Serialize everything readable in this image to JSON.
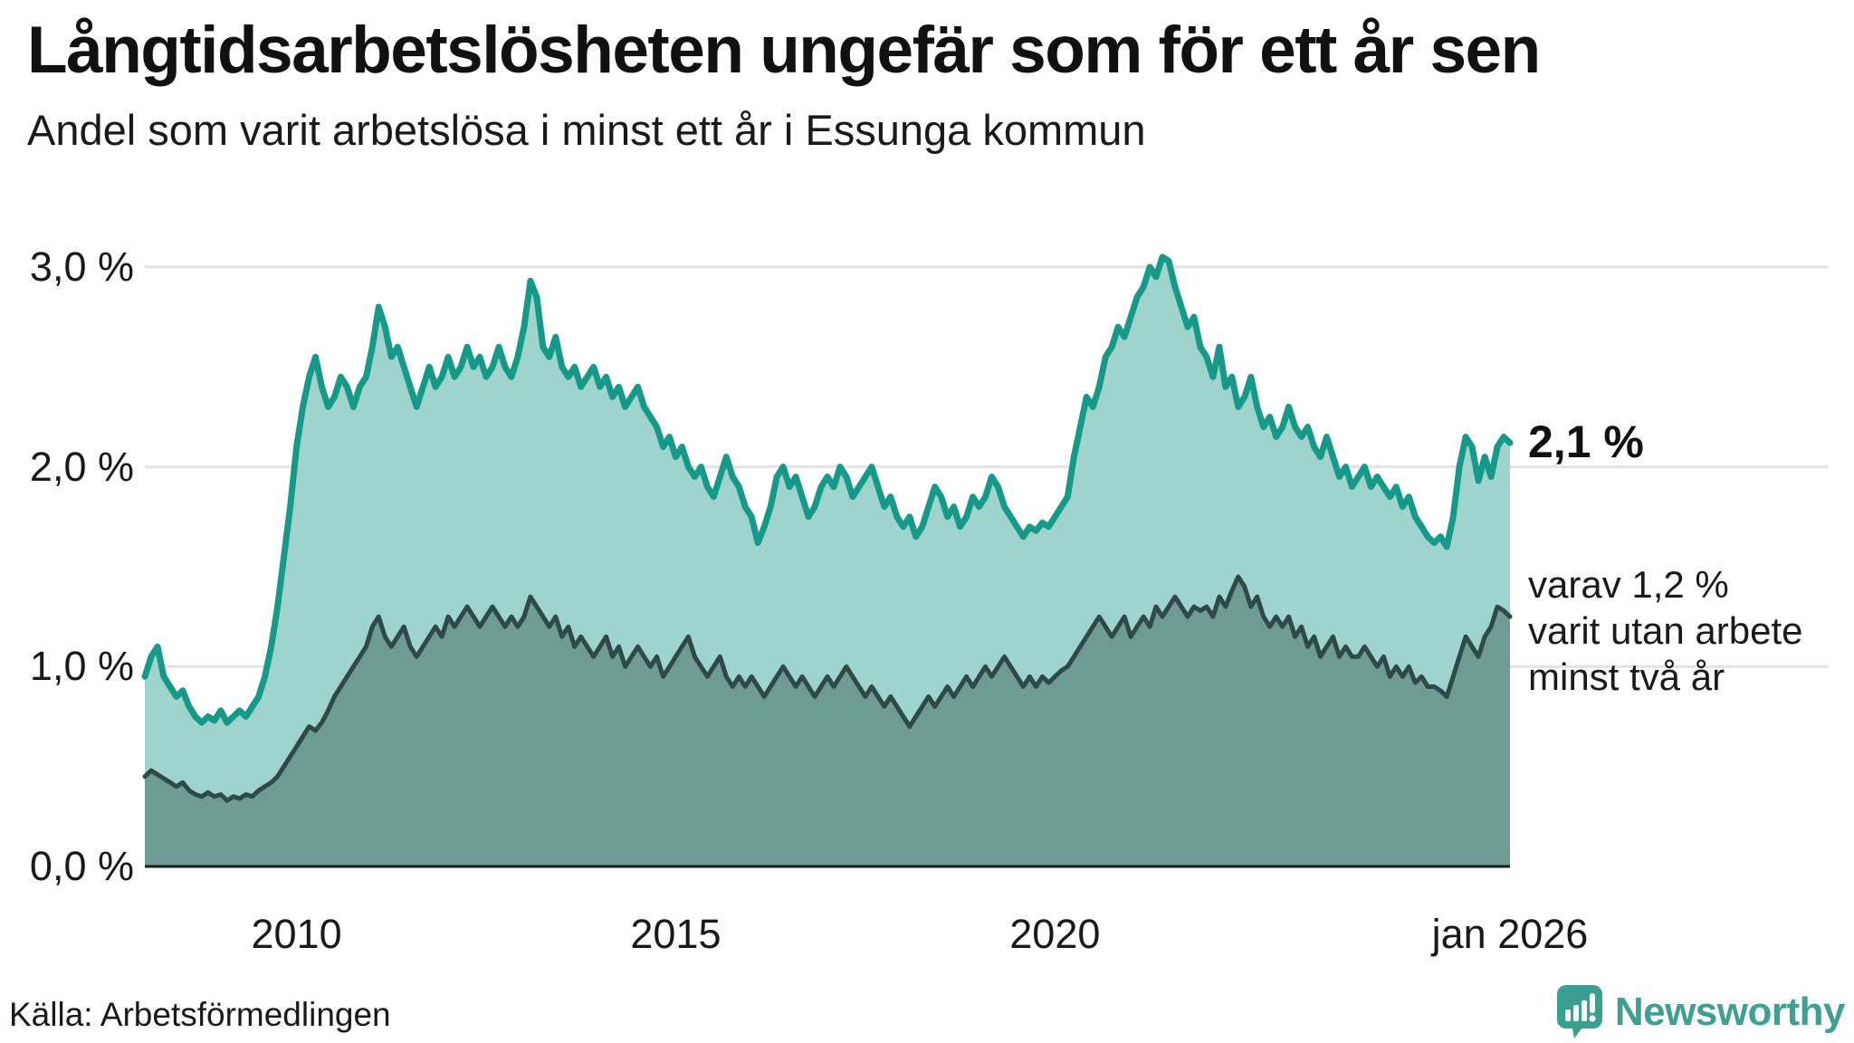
{
  "header": {
    "title": "Långtidsarbetslösheten ungefär som för ett år sen",
    "subtitle": "Andel som varit arbetslösa i minst ett år i Essunga kommun"
  },
  "annotations": {
    "series1_end_label": "2,1 %",
    "series2_end_label_lines": [
      "varav 1,2 %",
      "varit utan arbete",
      "minst två år"
    ]
  },
  "footer": {
    "source": "Källa: Arbetsförmedlingen",
    "brand": "Newsworthy"
  },
  "colors": {
    "background": "#ffffff",
    "gridline": "#e2e2e8",
    "axis_line": "#1b1b1b",
    "text": "#1a1a1a",
    "brand_teal": "#3da091",
    "series1_line": "#17998a",
    "series1_fill": "#9fd4cc",
    "series2_line": "#2e4a46",
    "series2_fill": "#6f9b95"
  },
  "chart_data": {
    "type": "area",
    "title": "Långtidsarbetslösheten ungefär som för ett år sen",
    "subtitle": "Andel som varit arbetslösa i minst ett år i Essunga kommun",
    "unit": "%",
    "frequency": "monthly",
    "x_start": "2008-01",
    "x_end": "2026-01",
    "ylim": [
      0,
      3.2
    ],
    "grid": "horizontal",
    "legend_position": "none",
    "y_ticks": [
      {
        "value": 0,
        "label": "0,0 %"
      },
      {
        "value": 1,
        "label": "1,0 %"
      },
      {
        "value": 2,
        "label": "2,0 %"
      },
      {
        "value": 3,
        "label": "3,0 %"
      }
    ],
    "x_ticks": [
      {
        "month_index": 24,
        "label": "2010"
      },
      {
        "month_index": 84,
        "label": "2015"
      },
      {
        "month_index": 144,
        "label": "2020"
      },
      {
        "month_index": 216,
        "label": "jan 2026"
      }
    ],
    "series": [
      {
        "name": "Andel arbetslösa minst ett år",
        "end_value": 2.1,
        "line_color": "#17998a",
        "fill_color": "#9fd4cc",
        "values": [
          0.95,
          1.05,
          1.1,
          0.95,
          0.9,
          0.85,
          0.88,
          0.8,
          0.75,
          0.72,
          0.75,
          0.73,
          0.78,
          0.72,
          0.75,
          0.78,
          0.75,
          0.8,
          0.85,
          0.95,
          1.1,
          1.3,
          1.55,
          1.8,
          2.1,
          2.3,
          2.45,
          2.55,
          2.4,
          2.3,
          2.35,
          2.45,
          2.4,
          2.3,
          2.4,
          2.45,
          2.6,
          2.8,
          2.7,
          2.55,
          2.6,
          2.5,
          2.4,
          2.3,
          2.4,
          2.5,
          2.4,
          2.45,
          2.55,
          2.45,
          2.5,
          2.6,
          2.5,
          2.55,
          2.45,
          2.5,
          2.6,
          2.5,
          2.45,
          2.55,
          2.7,
          2.93,
          2.85,
          2.6,
          2.55,
          2.65,
          2.5,
          2.45,
          2.5,
          2.4,
          2.45,
          2.5,
          2.4,
          2.45,
          2.35,
          2.4,
          2.3,
          2.35,
          2.4,
          2.3,
          2.25,
          2.2,
          2.1,
          2.15,
          2.05,
          2.1,
          2.0,
          1.95,
          2.0,
          1.9,
          1.85,
          1.95,
          2.05,
          1.95,
          1.9,
          1.8,
          1.75,
          1.62,
          1.7,
          1.8,
          1.95,
          2.0,
          1.9,
          1.95,
          1.85,
          1.75,
          1.8,
          1.9,
          1.95,
          1.9,
          2.0,
          1.95,
          1.85,
          1.9,
          1.95,
          2.0,
          1.9,
          1.8,
          1.85,
          1.75,
          1.7,
          1.75,
          1.65,
          1.7,
          1.8,
          1.9,
          1.85,
          1.75,
          1.8,
          1.7,
          1.75,
          1.85,
          1.8,
          1.85,
          1.95,
          1.9,
          1.8,
          1.75,
          1.7,
          1.65,
          1.7,
          1.68,
          1.72,
          1.7,
          1.75,
          1.8,
          1.85,
          2.05,
          2.2,
          2.35,
          2.3,
          2.4,
          2.55,
          2.6,
          2.7,
          2.65,
          2.75,
          2.85,
          2.9,
          3.0,
          2.95,
          3.05,
          3.03,
          2.9,
          2.8,
          2.7,
          2.75,
          2.6,
          2.55,
          2.45,
          2.6,
          2.4,
          2.45,
          2.3,
          2.35,
          2.45,
          2.3,
          2.2,
          2.25,
          2.15,
          2.2,
          2.3,
          2.2,
          2.15,
          2.2,
          2.1,
          2.05,
          2.15,
          2.05,
          1.95,
          2.0,
          1.9,
          1.95,
          2.0,
          1.9,
          1.95,
          1.9,
          1.85,
          1.9,
          1.8,
          1.85,
          1.75,
          1.7,
          1.65,
          1.62,
          1.65,
          1.6,
          1.75,
          2.0,
          2.15,
          2.1,
          1.93,
          2.05,
          1.95,
          2.1,
          2.15,
          2.12
        ]
      },
      {
        "name": "Andel arbetslösa minst två år",
        "end_value": 1.2,
        "line_color": "#2e4a46",
        "fill_color": "#6f9b95",
        "values": [
          0.45,
          0.48,
          0.46,
          0.44,
          0.42,
          0.4,
          0.42,
          0.38,
          0.36,
          0.35,
          0.37,
          0.35,
          0.36,
          0.33,
          0.35,
          0.34,
          0.36,
          0.35,
          0.38,
          0.4,
          0.42,
          0.45,
          0.5,
          0.55,
          0.6,
          0.65,
          0.7,
          0.68,
          0.72,
          0.78,
          0.85,
          0.9,
          0.95,
          1.0,
          1.05,
          1.1,
          1.2,
          1.25,
          1.15,
          1.1,
          1.15,
          1.2,
          1.1,
          1.05,
          1.1,
          1.15,
          1.2,
          1.15,
          1.25,
          1.2,
          1.25,
          1.3,
          1.25,
          1.2,
          1.25,
          1.3,
          1.25,
          1.2,
          1.25,
          1.2,
          1.25,
          1.35,
          1.3,
          1.25,
          1.2,
          1.25,
          1.15,
          1.2,
          1.1,
          1.15,
          1.1,
          1.05,
          1.1,
          1.15,
          1.05,
          1.1,
          1.0,
          1.05,
          1.1,
          1.05,
          1.0,
          1.05,
          0.95,
          1.0,
          1.05,
          1.1,
          1.15,
          1.05,
          1.0,
          0.95,
          1.0,
          1.05,
          0.95,
          0.9,
          0.95,
          0.9,
          0.95,
          0.9,
          0.85,
          0.9,
          0.95,
          1.0,
          0.95,
          0.9,
          0.95,
          0.9,
          0.85,
          0.9,
          0.95,
          0.9,
          0.95,
          1.0,
          0.95,
          0.9,
          0.85,
          0.9,
          0.85,
          0.8,
          0.85,
          0.8,
          0.75,
          0.7,
          0.75,
          0.8,
          0.85,
          0.8,
          0.85,
          0.9,
          0.85,
          0.9,
          0.95,
          0.9,
          0.95,
          1.0,
          0.95,
          1.0,
          1.05,
          1.0,
          0.95,
          0.9,
          0.95,
          0.9,
          0.95,
          0.92,
          0.95,
          0.98,
          1.0,
          1.05,
          1.1,
          1.15,
          1.2,
          1.25,
          1.2,
          1.15,
          1.2,
          1.25,
          1.15,
          1.2,
          1.25,
          1.2,
          1.3,
          1.25,
          1.3,
          1.35,
          1.3,
          1.25,
          1.3,
          1.28,
          1.3,
          1.25,
          1.35,
          1.3,
          1.38,
          1.45,
          1.4,
          1.3,
          1.35,
          1.25,
          1.2,
          1.25,
          1.2,
          1.25,
          1.15,
          1.2,
          1.1,
          1.15,
          1.05,
          1.1,
          1.15,
          1.05,
          1.1,
          1.05,
          1.05,
          1.1,
          1.05,
          1.0,
          1.05,
          0.95,
          1.0,
          0.95,
          1.0,
          0.92,
          0.95,
          0.9,
          0.9,
          0.88,
          0.85,
          0.95,
          1.05,
          1.15,
          1.1,
          1.05,
          1.15,
          1.2,
          1.3,
          1.28,
          1.25
        ]
      }
    ]
  }
}
